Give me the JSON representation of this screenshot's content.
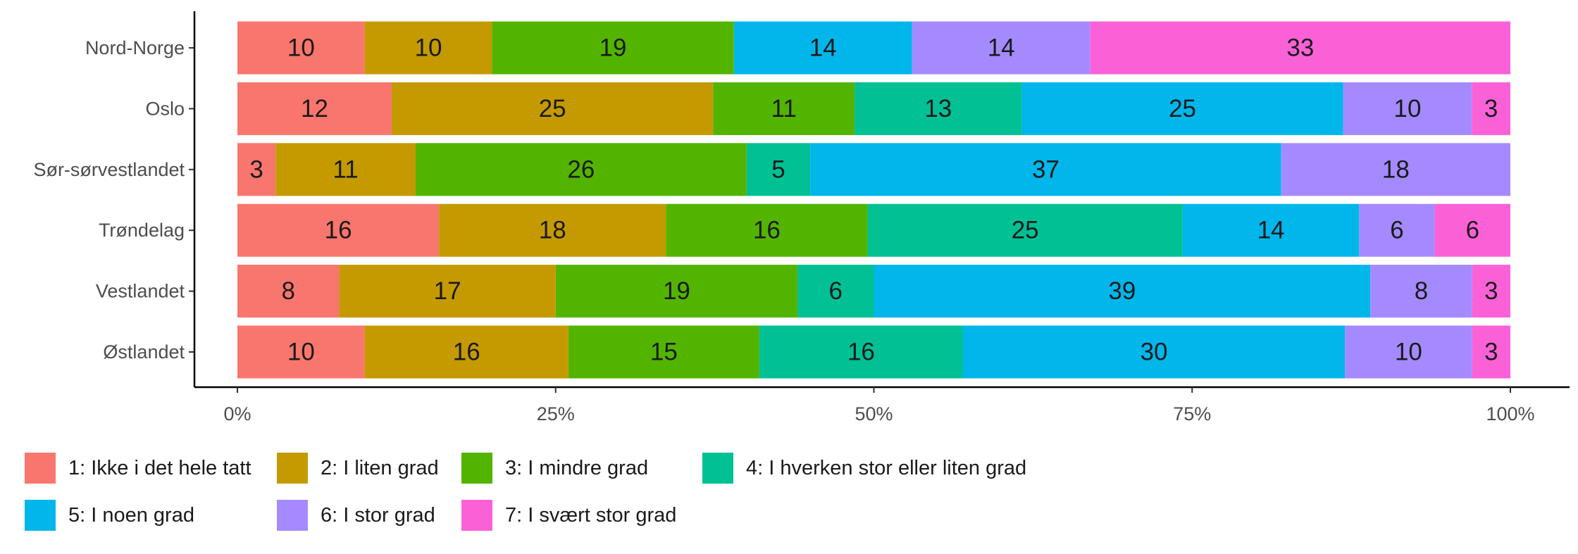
{
  "chart_data": {
    "type": "bar",
    "orientation": "horizontal",
    "stacked": "percent",
    "categories": [
      "Nord-Norge",
      "Oslo",
      "Sør-sørvestlandet",
      "Trøndelag",
      "Vestlandet",
      "Østlandet"
    ],
    "series": [
      {
        "name": "1: Ikke i det hele tatt",
        "color": "#F8766D",
        "values": [
          10,
          12,
          3,
          16,
          8,
          10
        ]
      },
      {
        "name": "2: I liten grad",
        "color": "#C49A00",
        "values": [
          10,
          25,
          11,
          18,
          17,
          16
        ]
      },
      {
        "name": "3: I mindre grad",
        "color": "#53B400",
        "values": [
          19,
          11,
          26,
          16,
          19,
          15
        ]
      },
      {
        "name": "4: I hverken stor eller liten grad",
        "color": "#00C094",
        "values": [
          0,
          13,
          5,
          25,
          6,
          16
        ]
      },
      {
        "name": "5: I noen grad",
        "color": "#00B6EB",
        "values": [
          14,
          25,
          37,
          14,
          39,
          30
        ]
      },
      {
        "name": "6: I stor grad",
        "color": "#A58AFF",
        "values": [
          14,
          10,
          18,
          6,
          8,
          10
        ]
      },
      {
        "name": "7: I svært stor grad",
        "color": "#FB61D7",
        "values": [
          33,
          3,
          0,
          6,
          3,
          3
        ]
      }
    ],
    "xticks": [
      "0%",
      "25%",
      "50%",
      "75%",
      "100%"
    ],
    "xlim": [
      0,
      100
    ],
    "title": "",
    "xlabel": "",
    "ylabel": "",
    "grid": false,
    "legend_position": "bottom-left"
  }
}
